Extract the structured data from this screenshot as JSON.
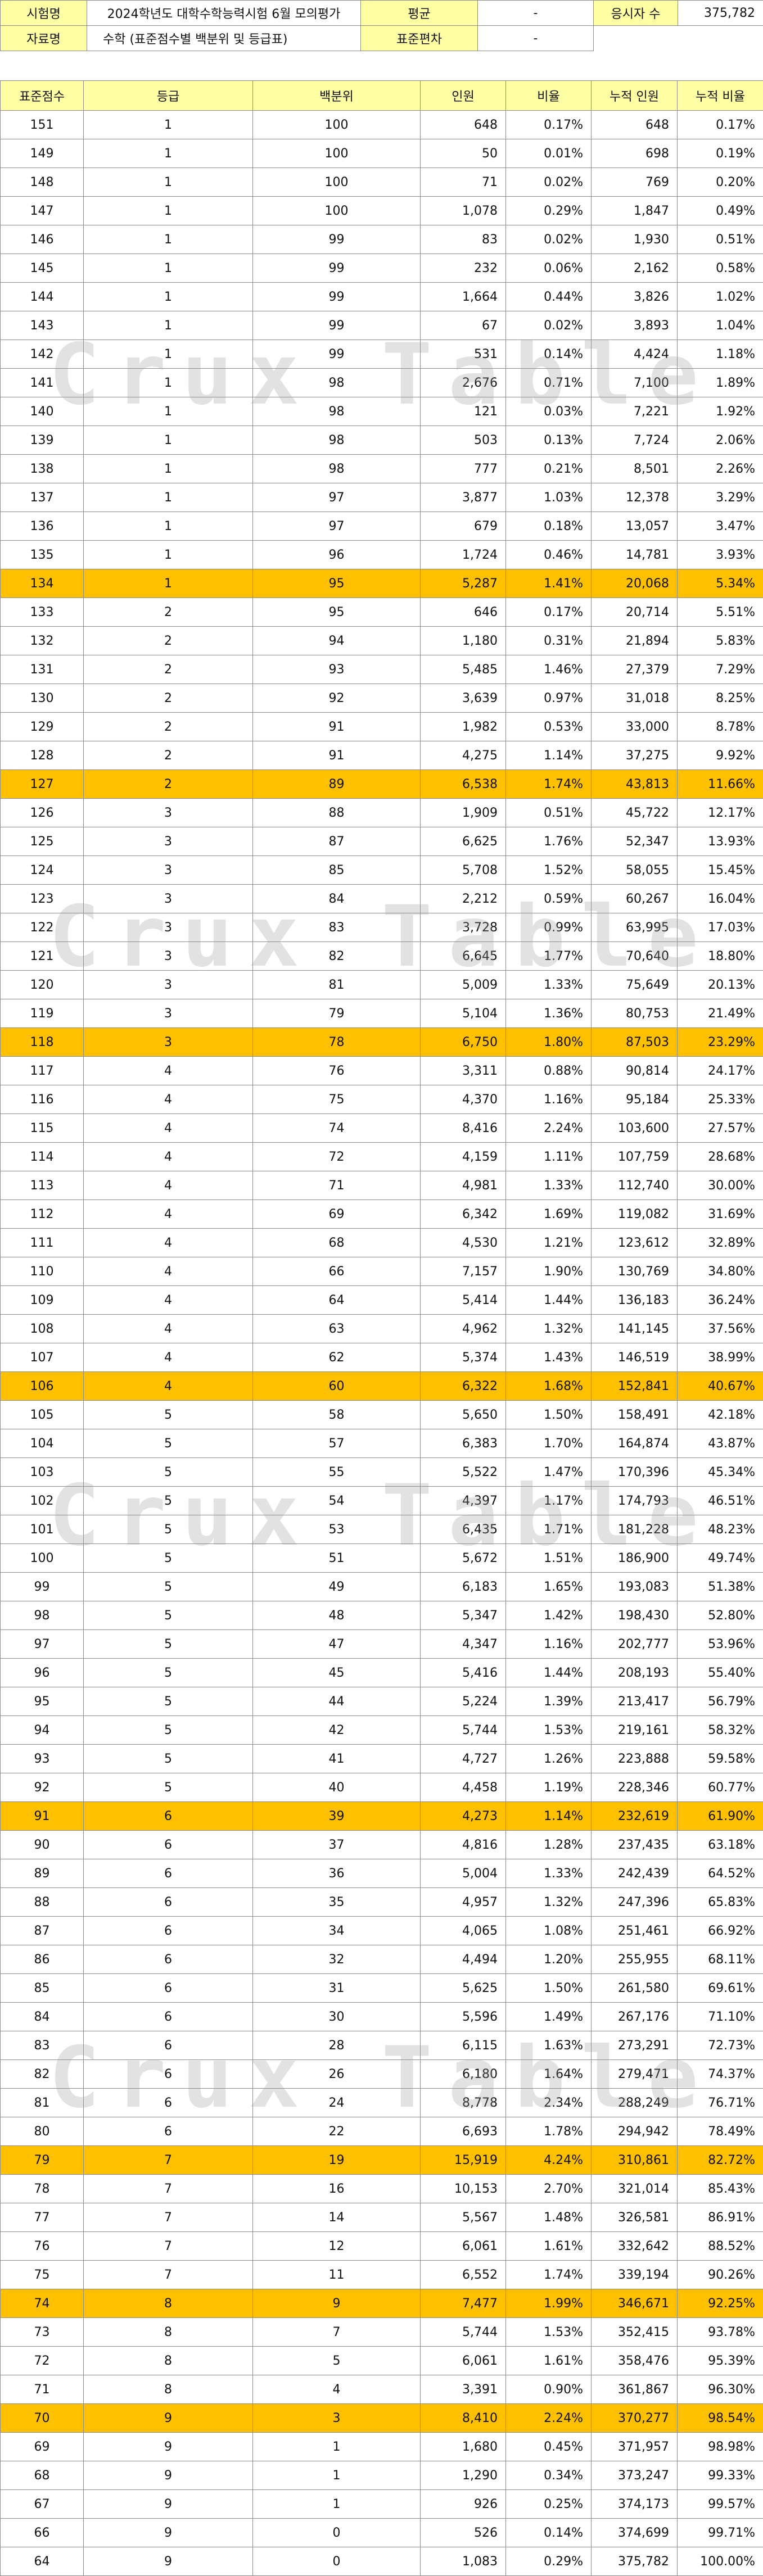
{
  "info": {
    "exam_label": "시험명",
    "exam_value": "2024학년도 대학수학능력시험 6월 모의평가",
    "mean_label": "평균",
    "mean_value": "-",
    "examinees_label": "응시자 수",
    "examinees_value": "375,782",
    "material_label": "자료명",
    "material_value": "수학 (표준점수별 백분위 및 등급표)",
    "sd_label": "표준편차",
    "sd_value": "-"
  },
  "columns": [
    "표준점수",
    "등급",
    "백분위",
    "인원",
    "비율",
    "누적 인원",
    "누적 비율"
  ],
  "watermark": "Crux Table",
  "highlight_color": "#ffc000",
  "label_color": "#ffffa3",
  "rows": [
    [
      "151",
      "1",
      "100",
      "648",
      "0.17%",
      "648",
      "0.17%"
    ],
    [
      "149",
      "1",
      "100",
      "50",
      "0.01%",
      "698",
      "0.19%"
    ],
    [
      "148",
      "1",
      "100",
      "71",
      "0.02%",
      "769",
      "0.20%"
    ],
    [
      "147",
      "1",
      "100",
      "1,078",
      "0.29%",
      "1,847",
      "0.49%"
    ],
    [
      "146",
      "1",
      "99",
      "83",
      "0.02%",
      "1,930",
      "0.51%"
    ],
    [
      "145",
      "1",
      "99",
      "232",
      "0.06%",
      "2,162",
      "0.58%"
    ],
    [
      "144",
      "1",
      "99",
      "1,664",
      "0.44%",
      "3,826",
      "1.02%"
    ],
    [
      "143",
      "1",
      "99",
      "67",
      "0.02%",
      "3,893",
      "1.04%"
    ],
    [
      "142",
      "1",
      "99",
      "531",
      "0.14%",
      "4,424",
      "1.18%"
    ],
    [
      "141",
      "1",
      "98",
      "2,676",
      "0.71%",
      "7,100",
      "1.89%"
    ],
    [
      "140",
      "1",
      "98",
      "121",
      "0.03%",
      "7,221",
      "1.92%"
    ],
    [
      "139",
      "1",
      "98",
      "503",
      "0.13%",
      "7,724",
      "2.06%"
    ],
    [
      "138",
      "1",
      "98",
      "777",
      "0.21%",
      "8,501",
      "2.26%"
    ],
    [
      "137",
      "1",
      "97",
      "3,877",
      "1.03%",
      "12,378",
      "3.29%"
    ],
    [
      "136",
      "1",
      "97",
      "679",
      "0.18%",
      "13,057",
      "3.47%"
    ],
    [
      "135",
      "1",
      "96",
      "1,724",
      "0.46%",
      "14,781",
      "3.93%"
    ],
    [
      "134",
      "1",
      "95",
      "5,287",
      "1.41%",
      "20,068",
      "5.34%"
    ],
    [
      "133",
      "2",
      "95",
      "646",
      "0.17%",
      "20,714",
      "5.51%"
    ],
    [
      "132",
      "2",
      "94",
      "1,180",
      "0.31%",
      "21,894",
      "5.83%"
    ],
    [
      "131",
      "2",
      "93",
      "5,485",
      "1.46%",
      "27,379",
      "7.29%"
    ],
    [
      "130",
      "2",
      "92",
      "3,639",
      "0.97%",
      "31,018",
      "8.25%"
    ],
    [
      "129",
      "2",
      "91",
      "1,982",
      "0.53%",
      "33,000",
      "8.78%"
    ],
    [
      "128",
      "2",
      "91",
      "4,275",
      "1.14%",
      "37,275",
      "9.92%"
    ],
    [
      "127",
      "2",
      "89",
      "6,538",
      "1.74%",
      "43,813",
      "11.66%"
    ],
    [
      "126",
      "3",
      "88",
      "1,909",
      "0.51%",
      "45,722",
      "12.17%"
    ],
    [
      "125",
      "3",
      "87",
      "6,625",
      "1.76%",
      "52,347",
      "13.93%"
    ],
    [
      "124",
      "3",
      "85",
      "5,708",
      "1.52%",
      "58,055",
      "15.45%"
    ],
    [
      "123",
      "3",
      "84",
      "2,212",
      "0.59%",
      "60,267",
      "16.04%"
    ],
    [
      "122",
      "3",
      "83",
      "3,728",
      "0.99%",
      "63,995",
      "17.03%"
    ],
    [
      "121",
      "3",
      "82",
      "6,645",
      "1.77%",
      "70,640",
      "18.80%"
    ],
    [
      "120",
      "3",
      "81",
      "5,009",
      "1.33%",
      "75,649",
      "20.13%"
    ],
    [
      "119",
      "3",
      "79",
      "5,104",
      "1.36%",
      "80,753",
      "21.49%"
    ],
    [
      "118",
      "3",
      "78",
      "6,750",
      "1.80%",
      "87,503",
      "23.29%"
    ],
    [
      "117",
      "4",
      "76",
      "3,311",
      "0.88%",
      "90,814",
      "24.17%"
    ],
    [
      "116",
      "4",
      "75",
      "4,370",
      "1.16%",
      "95,184",
      "25.33%"
    ],
    [
      "115",
      "4",
      "74",
      "8,416",
      "2.24%",
      "103,600",
      "27.57%"
    ],
    [
      "114",
      "4",
      "72",
      "4,159",
      "1.11%",
      "107,759",
      "28.68%"
    ],
    [
      "113",
      "4",
      "71",
      "4,981",
      "1.33%",
      "112,740",
      "30.00%"
    ],
    [
      "112",
      "4",
      "69",
      "6,342",
      "1.69%",
      "119,082",
      "31.69%"
    ],
    [
      "111",
      "4",
      "68",
      "4,530",
      "1.21%",
      "123,612",
      "32.89%"
    ],
    [
      "110",
      "4",
      "66",
      "7,157",
      "1.90%",
      "130,769",
      "34.80%"
    ],
    [
      "109",
      "4",
      "64",
      "5,414",
      "1.44%",
      "136,183",
      "36.24%"
    ],
    [
      "108",
      "4",
      "63",
      "4,962",
      "1.32%",
      "141,145",
      "37.56%"
    ],
    [
      "107",
      "4",
      "62",
      "5,374",
      "1.43%",
      "146,519",
      "38.99%"
    ],
    [
      "106",
      "4",
      "60",
      "6,322",
      "1.68%",
      "152,841",
      "40.67%"
    ],
    [
      "105",
      "5",
      "58",
      "5,650",
      "1.50%",
      "158,491",
      "42.18%"
    ],
    [
      "104",
      "5",
      "57",
      "6,383",
      "1.70%",
      "164,874",
      "43.87%"
    ],
    [
      "103",
      "5",
      "55",
      "5,522",
      "1.47%",
      "170,396",
      "45.34%"
    ],
    [
      "102",
      "5",
      "54",
      "4,397",
      "1.17%",
      "174,793",
      "46.51%"
    ],
    [
      "101",
      "5",
      "53",
      "6,435",
      "1.71%",
      "181,228",
      "48.23%"
    ],
    [
      "100",
      "5",
      "51",
      "5,672",
      "1.51%",
      "186,900",
      "49.74%"
    ],
    [
      "99",
      "5",
      "49",
      "6,183",
      "1.65%",
      "193,083",
      "51.38%"
    ],
    [
      "98",
      "5",
      "48",
      "5,347",
      "1.42%",
      "198,430",
      "52.80%"
    ],
    [
      "97",
      "5",
      "47",
      "4,347",
      "1.16%",
      "202,777",
      "53.96%"
    ],
    [
      "96",
      "5",
      "45",
      "5,416",
      "1.44%",
      "208,193",
      "55.40%"
    ],
    [
      "95",
      "5",
      "44",
      "5,224",
      "1.39%",
      "213,417",
      "56.79%"
    ],
    [
      "94",
      "5",
      "42",
      "5,744",
      "1.53%",
      "219,161",
      "58.32%"
    ],
    [
      "93",
      "5",
      "41",
      "4,727",
      "1.26%",
      "223,888",
      "59.58%"
    ],
    [
      "92",
      "5",
      "40",
      "4,458",
      "1.19%",
      "228,346",
      "60.77%"
    ],
    [
      "91",
      "6",
      "39",
      "4,273",
      "1.14%",
      "232,619",
      "61.90%"
    ],
    [
      "90",
      "6",
      "37",
      "4,816",
      "1.28%",
      "237,435",
      "63.18%"
    ],
    [
      "89",
      "6",
      "36",
      "5,004",
      "1.33%",
      "242,439",
      "64.52%"
    ],
    [
      "88",
      "6",
      "35",
      "4,957",
      "1.32%",
      "247,396",
      "65.83%"
    ],
    [
      "87",
      "6",
      "34",
      "4,065",
      "1.08%",
      "251,461",
      "66.92%"
    ],
    [
      "86",
      "6",
      "32",
      "4,494",
      "1.20%",
      "255,955",
      "68.11%"
    ],
    [
      "85",
      "6",
      "31",
      "5,625",
      "1.50%",
      "261,580",
      "69.61%"
    ],
    [
      "84",
      "6",
      "30",
      "5,596",
      "1.49%",
      "267,176",
      "71.10%"
    ],
    [
      "83",
      "6",
      "28",
      "6,115",
      "1.63%",
      "273,291",
      "72.73%"
    ],
    [
      "82",
      "6",
      "26",
      "6,180",
      "1.64%",
      "279,471",
      "74.37%"
    ],
    [
      "81",
      "6",
      "24",
      "8,778",
      "2.34%",
      "288,249",
      "76.71%"
    ],
    [
      "80",
      "6",
      "22",
      "6,693",
      "1.78%",
      "294,942",
      "78.49%"
    ],
    [
      "79",
      "7",
      "19",
      "15,919",
      "4.24%",
      "310,861",
      "82.72%"
    ],
    [
      "78",
      "7",
      "16",
      "10,153",
      "2.70%",
      "321,014",
      "85.43%"
    ],
    [
      "77",
      "7",
      "14",
      "5,567",
      "1.48%",
      "326,581",
      "86.91%"
    ],
    [
      "76",
      "7",
      "12",
      "6,061",
      "1.61%",
      "332,642",
      "88.52%"
    ],
    [
      "75",
      "7",
      "11",
      "6,552",
      "1.74%",
      "339,194",
      "90.26%"
    ],
    [
      "74",
      "8",
      "9",
      "7,477",
      "1.99%",
      "346,671",
      "92.25%"
    ],
    [
      "73",
      "8",
      "7",
      "5,744",
      "1.53%",
      "352,415",
      "93.78%"
    ],
    [
      "72",
      "8",
      "5",
      "6,061",
      "1.61%",
      "358,476",
      "95.39%"
    ],
    [
      "71",
      "8",
      "4",
      "3,391",
      "0.90%",
      "361,867",
      "96.30%"
    ],
    [
      "70",
      "9",
      "3",
      "8,410",
      "2.24%",
      "370,277",
      "98.54%"
    ],
    [
      "69",
      "9",
      "1",
      "1,680",
      "0.45%",
      "371,957",
      "98.98%"
    ],
    [
      "68",
      "9",
      "1",
      "1,290",
      "0.34%",
      "373,247",
      "99.33%"
    ],
    [
      "67",
      "9",
      "1",
      "926",
      "0.25%",
      "374,173",
      "99.57%"
    ],
    [
      "66",
      "9",
      "0",
      "526",
      "0.14%",
      "374,699",
      "99.71%"
    ],
    [
      "64",
      "9",
      "0",
      "1,083",
      "0.29%",
      "375,782",
      "100.00%"
    ]
  ],
  "highlight_rows": [
    16,
    23,
    32,
    44,
    59,
    71,
    76,
    80
  ]
}
